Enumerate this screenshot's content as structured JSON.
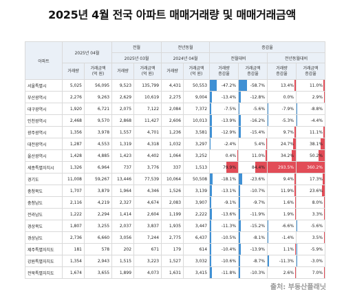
{
  "title": "2025년 4월 전국 아파트 매매거래량 및 매매거래금액",
  "headers": {
    "region": "아파트",
    "current_period": "2025년 04월",
    "prev_month": "전월",
    "prev_year_month": "전년동월",
    "change": "증감율",
    "prev_month_sub": "2025년 03월",
    "prev_year_sub": "2024년 04월",
    "vs_prev_month": "전월대비",
    "vs_prev_year": "전년동월대비",
    "volume": "거래량",
    "amount": "거래금액\n(억 원)",
    "volume_rate": "거래량\n증감율",
    "amount_rate": "거래금액\n증감율"
  },
  "rows": [
    {
      "region": "서울특별시",
      "vol": "5,025",
      "amt": "56,095",
      "pm_vol": "9,523",
      "pm_amt": "135,799",
      "py_vol": "4,431",
      "py_amt": "50,553",
      "r1": "-47.2%",
      "r2": "-58.7%",
      "r3": "13.4%",
      "r4": "11.0%"
    },
    {
      "region": "부산광역시",
      "vol": "2,276",
      "amt": "9,263",
      "pm_vol": "2,629",
      "pm_amt": "10,619",
      "py_vol": "2,275",
      "py_amt": "9,004",
      "r1": "-13.4%",
      "r2": "-12.8%",
      "r3": "0.0%",
      "r4": "2.9%"
    },
    {
      "region": "대구광역시",
      "vol": "1,920",
      "amt": "6,721",
      "pm_vol": "2,075",
      "pm_amt": "7,122",
      "py_vol": "2,084",
      "py_amt": "7,372",
      "r1": "-7.5%",
      "r2": "-5.6%",
      "r3": "-7.9%",
      "r4": "-8.8%"
    },
    {
      "region": "인천광역시",
      "vol": "2,468",
      "amt": "9,570",
      "pm_vol": "2,868",
      "pm_amt": "11,427",
      "py_vol": "2,606",
      "py_amt": "10,013",
      "r1": "-13.9%",
      "r2": "-16.2%",
      "r3": "-5.3%",
      "r4": "-4.4%"
    },
    {
      "region": "광주광역시",
      "vol": "1,356",
      "amt": "3,978",
      "pm_vol": "1,557",
      "pm_amt": "4,701",
      "py_vol": "1,236",
      "py_amt": "3,581",
      "r1": "-12.9%",
      "r2": "-15.4%",
      "r3": "9.7%",
      "r4": "11.1%"
    },
    {
      "region": "대전광역시",
      "vol": "1,287",
      "amt": "4,553",
      "pm_vol": "1,319",
      "pm_amt": "4,318",
      "py_vol": "1,032",
      "py_amt": "3,297",
      "r1": "-2.4%",
      "r2": "5.4%",
      "r3": "24.7%",
      "r4": "38.1%"
    },
    {
      "region": "울산광역시",
      "vol": "1,428",
      "amt": "4,885",
      "pm_vol": "1,423",
      "pm_amt": "4,402",
      "py_vol": "1,064",
      "py_amt": "3,252",
      "r1": "0.4%",
      "r2": "11.0%",
      "r3": "34.2%",
      "r4": "50.2%"
    },
    {
      "region": "세종특별자치시",
      "vol": "1,326",
      "amt": "6,964",
      "pm_vol": "737",
      "pm_amt": "3,776",
      "py_vol": "337",
      "py_amt": "1,513",
      "r1": "79.9%",
      "r2": "84.4%",
      "r3": "293.5%",
      "r4": "360.2%"
    },
    {
      "region": "경기도",
      "vol": "11,008",
      "amt": "59,267",
      "pm_vol": "13,446",
      "pm_amt": "77,539",
      "py_vol": "10,064",
      "py_amt": "50,508",
      "r1": "-18.1%",
      "r2": "-23.6%",
      "r3": "9.4%",
      "r4": "17.3%"
    },
    {
      "region": "충청북도",
      "vol": "1,707",
      "amt": "3,879",
      "pm_vol": "1,964",
      "pm_amt": "4,346",
      "py_vol": "1,526",
      "py_amt": "3,139",
      "r1": "-13.1%",
      "r2": "-10.7%",
      "r3": "11.9%",
      "r4": "23.6%"
    },
    {
      "region": "충청남도",
      "vol": "2,116",
      "amt": "4,219",
      "pm_vol": "2,327",
      "pm_amt": "4,674",
      "py_vol": "2,083",
      "py_amt": "3,907",
      "r1": "-9.1%",
      "r2": "-9.7%",
      "r3": "1.6%",
      "r4": "8.0%"
    },
    {
      "region": "전라남도",
      "vol": "1,222",
      "amt": "2,294",
      "pm_vol": "1,414",
      "pm_amt": "2,604",
      "py_vol": "1,199",
      "py_amt": "2,222",
      "r1": "-13.6%",
      "r2": "-11.9%",
      "r3": "1.9%",
      "r4": "3.3%"
    },
    {
      "region": "경상북도",
      "vol": "1,807",
      "amt": "3,255",
      "pm_vol": "2,037",
      "pm_amt": "3,837",
      "py_vol": "1,935",
      "py_amt": "3,447",
      "r1": "-11.3%",
      "r2": "-15.2%",
      "r3": "-6.6%",
      "r4": "-5.6%"
    },
    {
      "region": "경상남도",
      "vol": "2,736",
      "amt": "6,660",
      "pm_vol": "3,056",
      "pm_amt": "7,244",
      "py_vol": "2,775",
      "py_amt": "6,437",
      "r1": "-10.5%",
      "r2": "-8.1%",
      "r3": "-1.4%",
      "r4": "3.5%"
    },
    {
      "region": "제주특별자치도",
      "vol": "181",
      "amt": "578",
      "pm_vol": "202",
      "pm_amt": "671",
      "py_vol": "179",
      "py_amt": "614",
      "r1": "-10.4%",
      "r2": "-13.9%",
      "r3": "1.1%",
      "r4": "-5.9%"
    },
    {
      "region": "강원특별자치도",
      "vol": "1,354",
      "amt": "2,943",
      "pm_vol": "1,515",
      "pm_amt": "3,223",
      "py_vol": "1,527",
      "py_amt": "3,032",
      "r1": "-10.6%",
      "r2": "-8.7%",
      "r3": "-11.3%",
      "r4": "-3.0%"
    },
    {
      "region": "전북특별자치도",
      "vol": "1,674",
      "amt": "3,655",
      "pm_vol": "1,899",
      "pm_amt": "4,073",
      "py_vol": "1,631",
      "py_amt": "3,415",
      "r1": "-11.8%",
      "r2": "-10.3%",
      "r3": "2.6%",
      "r4": "7.0%"
    }
  ],
  "source": "출처: 부동산플래닛",
  "colors": {
    "negative": "#3f90d4",
    "positive": "#e24c57",
    "header_bg": "#eaf0f7"
  }
}
